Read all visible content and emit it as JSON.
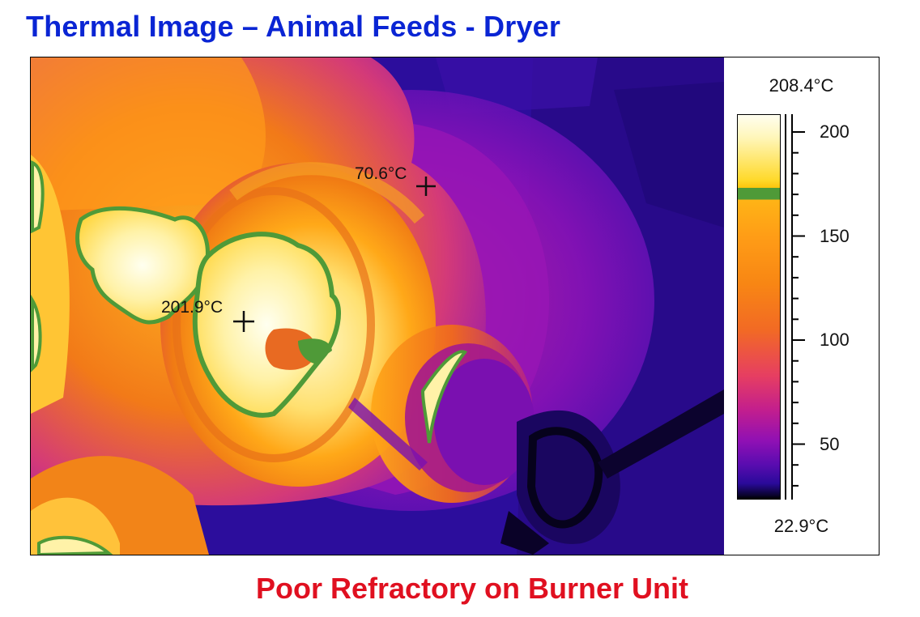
{
  "title": "Thermal Image – Animal Feeds - Dryer",
  "caption": "Poor Refractory on Burner Unit",
  "colors": {
    "title": "#0a25d4",
    "caption": "#e01020",
    "isotherm": "#4f9a38"
  },
  "thermal": {
    "max_label": "208.4°C",
    "min_label": "22.9°C",
    "scale_labels": [
      "200",
      "150",
      "100",
      "50"
    ],
    "markers": [
      {
        "label": "70.6°C",
        "icon": "crosshair-icon"
      },
      {
        "label": "201.9°C",
        "icon": "crosshair-icon"
      }
    ]
  }
}
